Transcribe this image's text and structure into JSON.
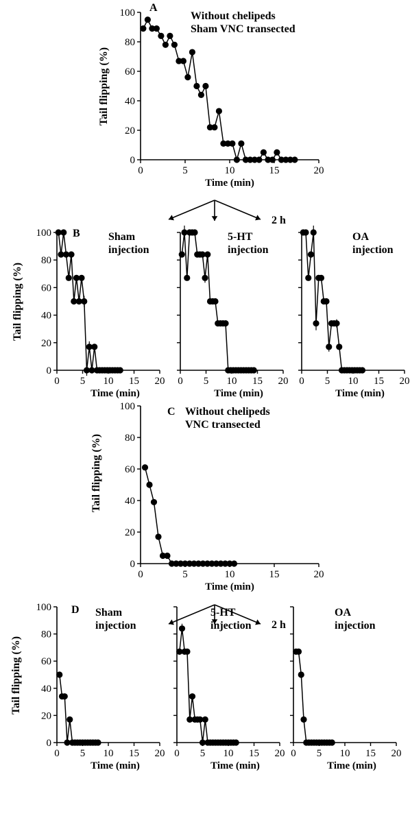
{
  "chart_data": [
    {
      "id": "A",
      "type": "line",
      "panel_letter": "A",
      "annotation": [
        "Without chelipeds",
        "Sham VNC transected"
      ],
      "xlabel": "Time (min)",
      "ylabel": "Tail flipping (%)",
      "xlim": [
        0,
        20
      ],
      "ylim": [
        0,
        100
      ],
      "xticks": [
        0,
        5,
        10,
        15,
        20
      ],
      "yticks": [
        0,
        20,
        40,
        60,
        80,
        100
      ],
      "x": [
        0.3,
        0.8,
        1.3,
        1.8,
        2.3,
        2.8,
        3.3,
        3.8,
        4.3,
        4.8,
        5.3,
        5.8,
        6.3,
        6.8,
        7.3,
        7.8,
        8.3,
        8.8,
        9.3,
        9.8,
        10.3,
        10.8,
        11.3,
        11.8,
        12.3,
        12.8,
        13.3,
        13.8,
        14.3,
        14.8,
        15.3,
        15.8,
        16.3,
        16.8,
        17.3
      ],
      "y": [
        89,
        95,
        89,
        89,
        84,
        78,
        84,
        78,
        67,
        67,
        56,
        73,
        50,
        44,
        50,
        22,
        22,
        33,
        11,
        11,
        11,
        0,
        11,
        0,
        0,
        0,
        0,
        5,
        0,
        0,
        5,
        0,
        0,
        0,
        0
      ]
    },
    {
      "id": "B-sham",
      "type": "line",
      "panel_letter": "B",
      "annotation": [
        "Sham",
        "injection"
      ],
      "xlabel": "Time (min)",
      "ylabel": "Tail flipping (%)",
      "xlim": [
        0,
        20
      ],
      "ylim": [
        0,
        100
      ],
      "xticks": [
        0,
        5,
        10,
        15,
        20
      ],
      "yticks": [
        0,
        20,
        40,
        60,
        80,
        100
      ],
      "x": [
        0.3,
        0.8,
        1.3,
        1.8,
        2.3,
        2.8,
        3.3,
        3.8,
        4.3,
        4.8,
        5.3,
        5.8,
        6.3,
        6.8,
        7.3,
        7.8,
        8.3,
        8.8,
        9.3,
        9.8,
        10.3,
        10.8,
        11.3,
        11.8,
        12.3
      ],
      "y": [
        100,
        84,
        100,
        84,
        67,
        84,
        50,
        67,
        50,
        67,
        50,
        0,
        17,
        0,
        17,
        0,
        0,
        0,
        0,
        0,
        0,
        0,
        0,
        0,
        0
      ]
    },
    {
      "id": "B-5ht",
      "type": "line",
      "annotation": [
        "5-HT",
        "injection"
      ],
      "xlabel": "Time (min)",
      "xlim": [
        0,
        20
      ],
      "ylim": [
        0,
        100
      ],
      "xticks": [
        0,
        5,
        10,
        15,
        20
      ],
      "x": [
        0.3,
        0.8,
        1.3,
        1.8,
        2.3,
        2.8,
        3.3,
        3.8,
        4.3,
        4.8,
        5.3,
        5.8,
        6.3,
        6.8,
        7.3,
        7.8,
        8.3,
        8.8,
        9.3,
        9.8,
        10.3,
        10.8,
        11.3,
        11.8,
        12.3,
        12.8,
        13.3,
        13.8,
        14.3
      ],
      "y": [
        84,
        100,
        67,
        100,
        100,
        100,
        84,
        84,
        84,
        67,
        84,
        50,
        50,
        50,
        34,
        34,
        34,
        34,
        0,
        0,
        0,
        0,
        0,
        0,
        0,
        0,
        0,
        0,
        0
      ]
    },
    {
      "id": "B-oa",
      "type": "line",
      "annotation": [
        "OA",
        "injection"
      ],
      "xlabel": "Time (min)",
      "xlim": [
        0,
        20
      ],
      "ylim": [
        0,
        100
      ],
      "xticks": [
        0,
        5,
        10,
        15,
        20
      ],
      "x": [
        0.3,
        0.8,
        1.3,
        1.8,
        2.3,
        2.8,
        3.3,
        3.8,
        4.3,
        4.8,
        5.3,
        5.8,
        6.3,
        6.8,
        7.3,
        7.8,
        8.3,
        8.8,
        9.3,
        9.8,
        10.3,
        10.8,
        11.3,
        11.8
      ],
      "y": [
        100,
        100,
        67,
        84,
        100,
        34,
        67,
        67,
        50,
        50,
        17,
        34,
        34,
        34,
        17,
        0,
        0,
        0,
        0,
        0,
        0,
        0,
        0,
        0
      ]
    },
    {
      "id": "C",
      "type": "line",
      "panel_letter": "C",
      "annotation": [
        "Without chelipeds",
        "VNC transected"
      ],
      "xlabel": "Time (min)",
      "ylabel": "Tail flipping (%)",
      "xlim": [
        0,
        20
      ],
      "ylim": [
        0,
        100
      ],
      "xticks": [
        0,
        5,
        10,
        15,
        20
      ],
      "yticks": [
        0,
        20,
        40,
        60,
        80,
        100
      ],
      "x": [
        0.5,
        1.0,
        1.5,
        2.0,
        2.5,
        3.0,
        3.5,
        4.0,
        4.5,
        5.0,
        5.5,
        6.0,
        6.5,
        7.0,
        7.5,
        8.0,
        8.5,
        9.0,
        9.5,
        10.0,
        10.5
      ],
      "y": [
        61,
        50,
        39,
        17,
        5,
        5,
        0,
        0,
        0,
        0,
        0,
        0,
        0,
        0,
        0,
        0,
        0,
        0,
        0,
        0,
        0
      ]
    },
    {
      "id": "D-sham",
      "type": "line",
      "panel_letter": "D",
      "annotation": [
        "Sham",
        "injection"
      ],
      "xlabel": "Time (min)",
      "ylabel": "Tail flipping (%)",
      "xlim": [
        0,
        20
      ],
      "ylim": [
        0,
        100
      ],
      "xticks": [
        0,
        5,
        10,
        15,
        20
      ],
      "yticks": [
        0,
        20,
        40,
        60,
        80,
        100
      ],
      "x": [
        0.5,
        1.0,
        1.5,
        2.0,
        2.5,
        3.0,
        3.5,
        4.0,
        4.5,
        5.0,
        5.5,
        6.0,
        6.5,
        7.0,
        7.5,
        8.0
      ],
      "y": [
        50,
        34,
        34,
        0,
        17,
        0,
        0,
        0,
        0,
        0,
        0,
        0,
        0,
        0,
        0,
        0
      ]
    },
    {
      "id": "D-5ht",
      "type": "line",
      "annotation": [
        "5-HT",
        "injection"
      ],
      "xlabel": "Time (min)",
      "xlim": [
        0,
        20
      ],
      "ylim": [
        0,
        100
      ],
      "xticks": [
        0,
        5,
        10,
        15,
        20
      ],
      "x": [
        0.5,
        1.0,
        1.5,
        2.0,
        2.5,
        3.0,
        3.5,
        4.0,
        4.5,
        5.0,
        5.5,
        6.0,
        6.5,
        7.0,
        7.5,
        8.0,
        8.5,
        9.0,
        9.5,
        10.0,
        10.5,
        11.0,
        11.5
      ],
      "y": [
        67,
        84,
        67,
        67,
        17,
        34,
        17,
        17,
        17,
        0,
        17,
        0,
        0,
        0,
        0,
        0,
        0,
        0,
        0,
        0,
        0,
        0,
        0
      ]
    },
    {
      "id": "D-oa",
      "type": "line",
      "annotation": [
        "OA",
        "injection"
      ],
      "xlabel": "Time (min)",
      "xlim": [
        0,
        20
      ],
      "ylim": [
        0,
        100
      ],
      "xticks": [
        0,
        5,
        10,
        15,
        20
      ],
      "x": [
        0.5,
        1.0,
        1.5,
        2.0,
        2.5,
        3.0,
        3.5,
        4.0,
        4.5,
        5.0,
        5.5,
        6.0,
        6.5,
        7.0,
        7.5
      ],
      "y": [
        67,
        67,
        50,
        17,
        0,
        0,
        0,
        0,
        0,
        0,
        0,
        0,
        0,
        0,
        0
      ]
    }
  ],
  "arrows": [
    {
      "label": "2 h"
    },
    {
      "label": "2 h"
    }
  ]
}
